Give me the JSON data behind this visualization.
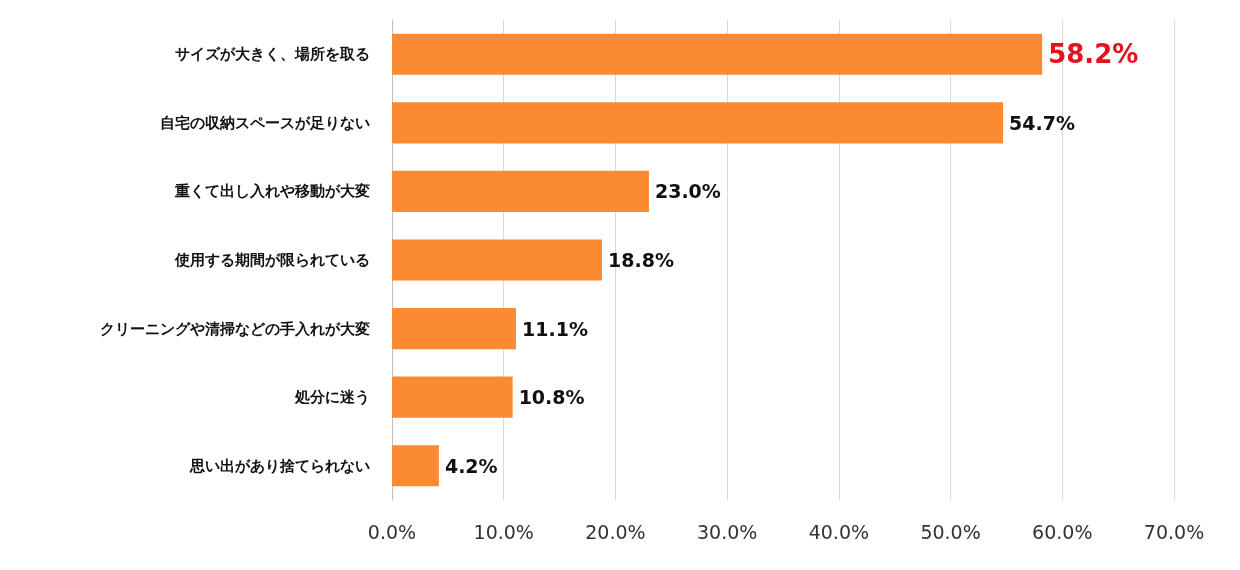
{
  "chart_data": {
    "type": "bar",
    "orientation": "horizontal",
    "categories": [
      "サイズが大きく、場所を取る",
      "自宅の収納スペースが足りない",
      "重くて出し入れや移動が大変",
      "使用する期間が限られている",
      "クリーニングや清掃などの手入れが大変",
      "処分に迷う",
      "思い出があり捨てられない"
    ],
    "values": [
      58.2,
      54.7,
      23.0,
      18.8,
      11.1,
      10.8,
      4.2
    ],
    "value_labels": [
      "58.2%",
      "54.7%",
      "23.0%",
      "18.8%",
      "11.1%",
      "10.8%",
      "4.2%"
    ],
    "color": "#fb8a32",
    "xlim": [
      0,
      70
    ],
    "xticks": [
      {
        "value": 0,
        "label": "0.0%"
      },
      {
        "value": 10,
        "label": "10.0%"
      },
      {
        "value": 20,
        "label": "20.0%"
      },
      {
        "value": 30,
        "label": "30.0%"
      },
      {
        "value": 40,
        "label": "40.0%"
      },
      {
        "value": 50,
        "label": "50.0%"
      },
      {
        "value": 60,
        "label": "60.0%"
      },
      {
        "value": 70,
        "label": "70.0%"
      }
    ],
    "grid": "x"
  }
}
